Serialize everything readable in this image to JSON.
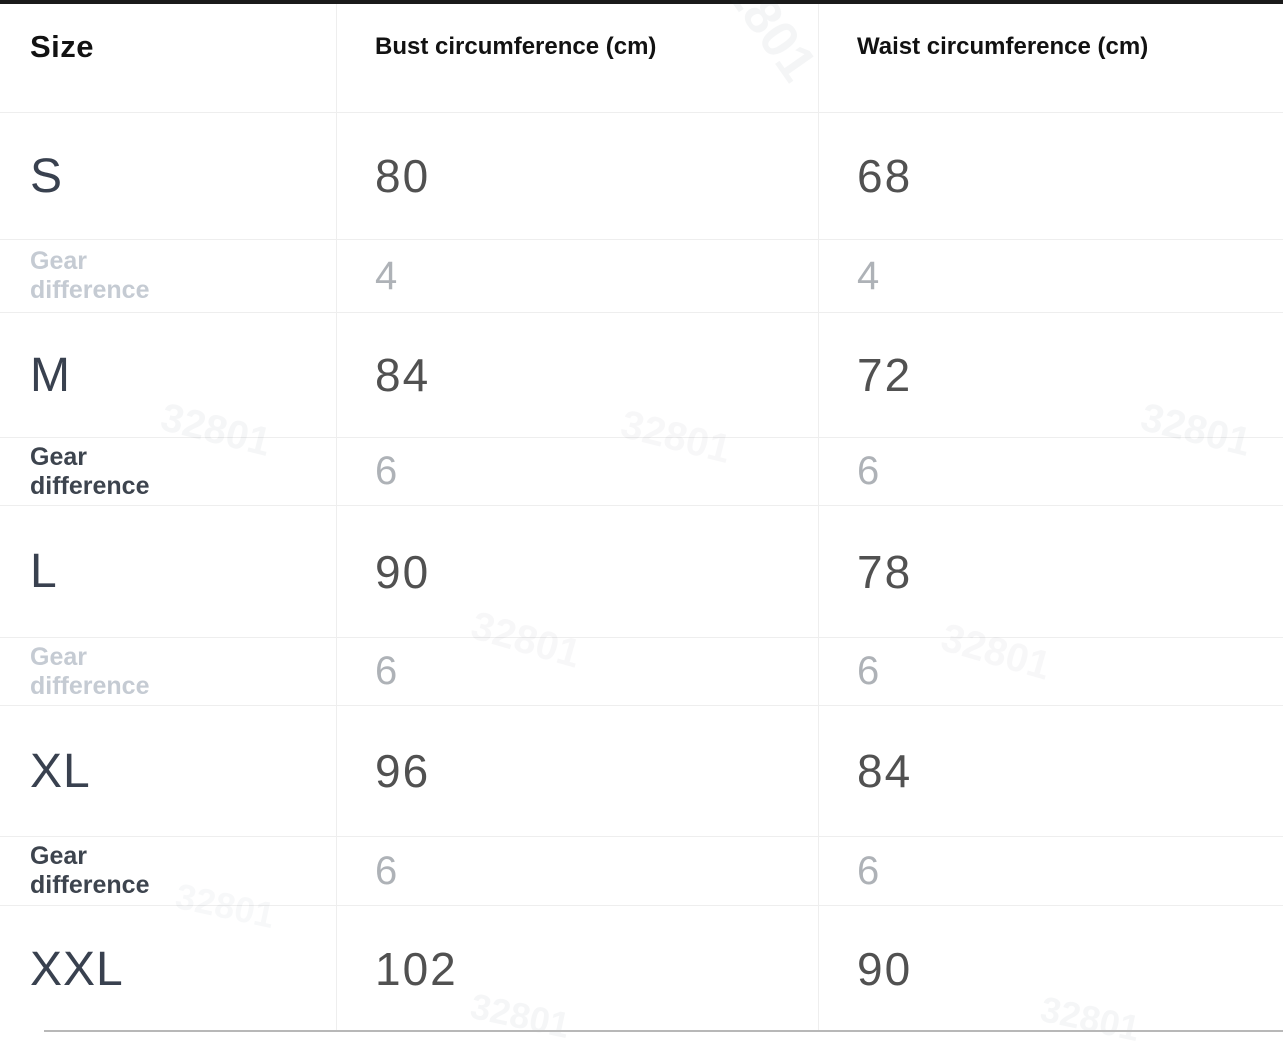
{
  "table": {
    "columns": [
      {
        "label": "Size"
      },
      {
        "label": "Bust circumference (cm)"
      },
      {
        "label": "Waist circumference (cm)"
      }
    ],
    "rows": [
      {
        "type": "size",
        "size": "S",
        "bust": "80",
        "waist": "68"
      },
      {
        "type": "gear-light",
        "size": "Gear difference",
        "bust": "4",
        "waist": "4"
      },
      {
        "type": "size",
        "size": "M",
        "bust": "84",
        "waist": "72"
      },
      {
        "type": "gear-dark",
        "size": "Gear difference",
        "bust": "6",
        "waist": "6"
      },
      {
        "type": "size",
        "size": "L",
        "bust": "90",
        "waist": "78"
      },
      {
        "type": "gear-light",
        "size": "Gear difference",
        "bust": "6",
        "waist": "6"
      },
      {
        "type": "size",
        "size": "XL",
        "bust": "96",
        "waist": "84"
      },
      {
        "type": "gear-dark",
        "size": "Gear difference",
        "bust": "6",
        "waist": "6"
      },
      {
        "type": "size",
        "size": "XXL",
        "bust": "102",
        "waist": "90"
      }
    ]
  },
  "watermark": {
    "text": "32801"
  },
  "colors": {
    "top_bar": "#1a1a1a",
    "header_text": "#121212",
    "size_text": "#39414f",
    "value_text": "#515151",
    "gear_label_light": "#c5cbd3",
    "gear_label_dark": "#3d444e",
    "gear_value": "#aeb2b7",
    "grid_line": "#eeeeee",
    "bottom_line": "#b8b8b8"
  },
  "chart_data": {
    "type": "table",
    "title": "Size chart (cm)",
    "columns": [
      "Size",
      "Bust circumference (cm)",
      "Waist circumference (cm)"
    ],
    "rows": [
      [
        "S",
        80,
        68
      ],
      [
        "Gear difference",
        4,
        4
      ],
      [
        "M",
        84,
        72
      ],
      [
        "Gear difference",
        6,
        6
      ],
      [
        "L",
        90,
        78
      ],
      [
        "Gear difference",
        6,
        6
      ],
      [
        "XL",
        96,
        84
      ],
      [
        "Gear difference",
        6,
        6
      ],
      [
        "XXL",
        102,
        90
      ]
    ]
  }
}
